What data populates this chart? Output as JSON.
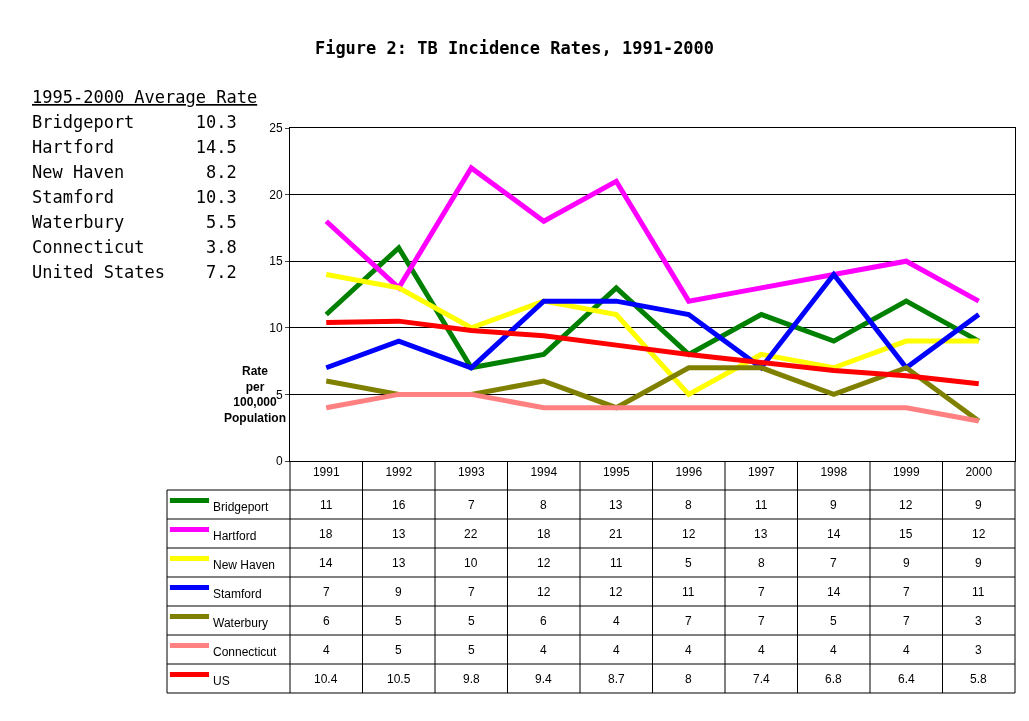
{
  "chart_data": {
    "type": "line",
    "title": "Figure 2: TB Incidence Rates, 1991-2000",
    "ylabel": "Rate per 100,000 Population",
    "categories": [
      "1991",
      "1992",
      "1993",
      "1994",
      "1995",
      "1996",
      "1997",
      "1998",
      "1999",
      "2000"
    ],
    "series": [
      {
        "name": "Bridgeport",
        "color": "#008000",
        "values": [
          11,
          16,
          7,
          8,
          13,
          8,
          11,
          9,
          12,
          9
        ]
      },
      {
        "name": "Hartford",
        "color": "#ff00ff",
        "values": [
          18,
          13,
          22,
          18,
          21,
          12,
          13,
          14,
          15,
          12
        ]
      },
      {
        "name": "New Haven",
        "color": "#ffff00",
        "values": [
          14,
          13,
          10,
          12,
          11,
          5,
          8,
          7,
          9,
          9
        ]
      },
      {
        "name": "Stamford",
        "color": "#0000ff",
        "values": [
          7,
          9,
          7,
          12,
          12,
          11,
          7,
          14,
          7,
          11
        ]
      },
      {
        "name": "Waterbury",
        "color": "#808000",
        "values": [
          6,
          5,
          5,
          6,
          4,
          7,
          7,
          5,
          7,
          3
        ]
      },
      {
        "name": "Connecticut",
        "color": "#ff8080",
        "values": [
          4,
          5,
          5,
          4,
          4,
          4,
          4,
          4,
          4,
          3
        ]
      },
      {
        "name": "US",
        "color": "#ff0000",
        "values": [
          10.4,
          10.5,
          9.8,
          9.4,
          8.7,
          8,
          7.4,
          6.8,
          6.4,
          5.8
        ]
      }
    ],
    "ylim": [
      0,
      25
    ],
    "yticks": [
      0,
      5,
      10,
      15,
      20,
      25
    ],
    "grid": "y",
    "legend": "bottom",
    "data_labels": true,
    "marker": "none",
    "line_style": "solid",
    "annotations": [
      "1995-2000 Average Rate",
      "Bridgeport      10.3",
      "Hartford        14.5",
      "New Haven        8.2",
      "Stamford        10.3",
      "Waterbury        5.5",
      "Connecticut      3.8",
      "United States    7.2"
    ]
  }
}
